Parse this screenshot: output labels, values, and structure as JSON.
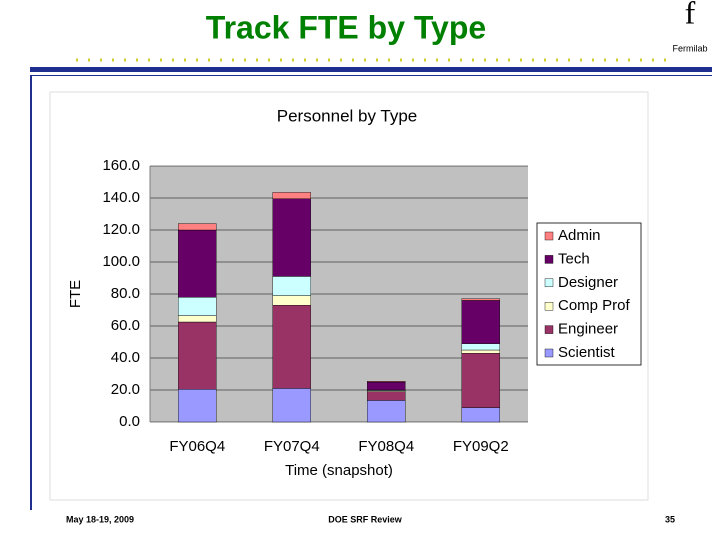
{
  "slide": {
    "title": "Track FTE by Type",
    "logo_mark": "f",
    "logo_text": "Fermilab",
    "footer": {
      "date": "May 18-19, 2009",
      "event": "DOE SRF Review",
      "page": "35"
    }
  },
  "chart_data": {
    "type": "stacked_bar",
    "title": "Personnel by Type",
    "y_label": "FTE",
    "x_label": "Time (snapshot)",
    "categories": [
      "FY06Q4",
      "FY07Q4",
      "FY08Q4",
      "FY09Q2"
    ],
    "series": [
      {
        "name": "Scientist",
        "color": "#9999ff",
        "values": [
          20.5,
          21,
          13.5,
          9
        ]
      },
      {
        "name": "Engineer",
        "color": "#993366",
        "values": [
          42,
          52,
          5.5,
          34
        ]
      },
      {
        "name": "Comp Prof",
        "color": "#ffffcc",
        "values": [
          4,
          6,
          0.5,
          2
        ]
      },
      {
        "name": "Designer",
        "color": "#ccffff",
        "values": [
          11.5,
          12,
          0.5,
          4
        ]
      },
      {
        "name": "Tech",
        "color": "#660066",
        "values": [
          42,
          48.5,
          5,
          27
        ]
      },
      {
        "name": "Admin",
        "color": "#ff8080",
        "values": [
          4,
          4,
          0.5,
          1
        ]
      }
    ],
    "ylim": [
      0,
      160
    ],
    "yticks": [
      {
        "value": 0,
        "label": "0.0"
      },
      {
        "value": 20,
        "label": "20.0"
      },
      {
        "value": 40,
        "label": "40.0"
      },
      {
        "value": 60,
        "label": "60.0"
      },
      {
        "value": 80,
        "label": "80.0"
      },
      {
        "value": 100,
        "label": "100.0"
      },
      {
        "value": 120,
        "label": "120.0"
      },
      {
        "value": 140,
        "label": "140.0"
      },
      {
        "value": 160,
        "label": "160.0"
      }
    ],
    "grid": true,
    "legend": "right"
  }
}
